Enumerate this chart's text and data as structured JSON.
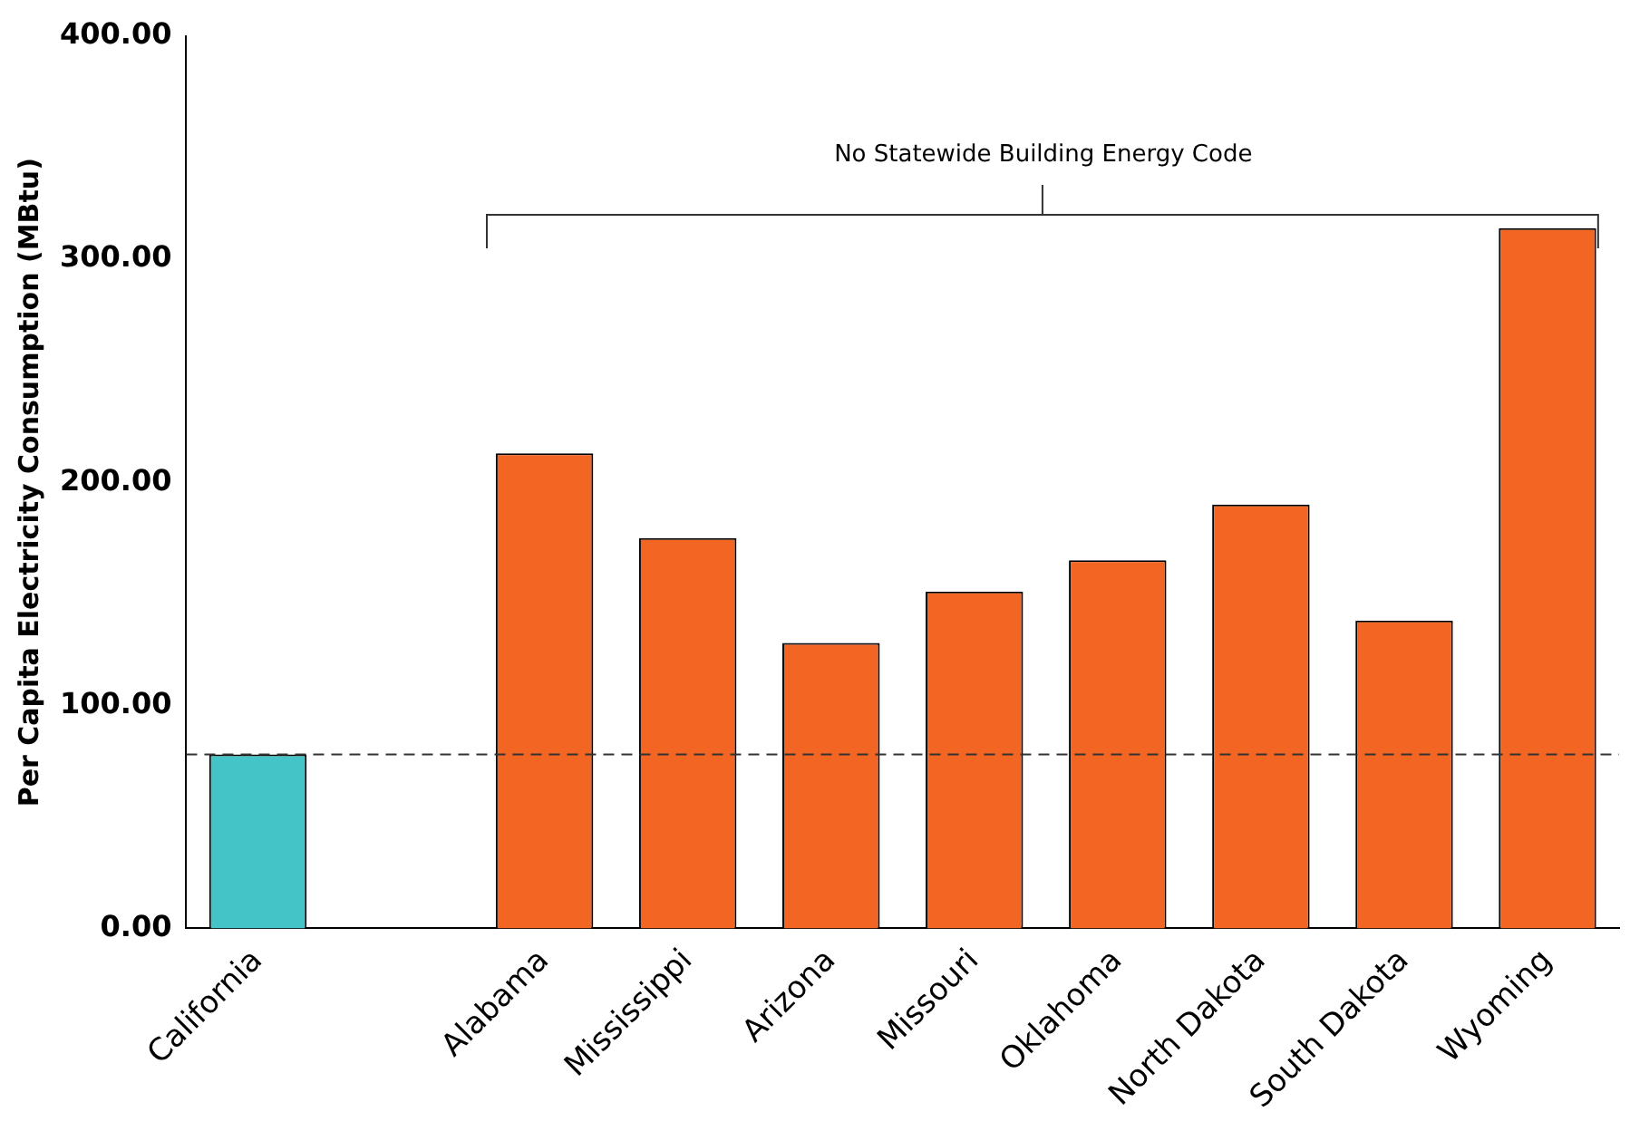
{
  "chart_data": {
    "type": "bar",
    "ylabel": "Per Capita Electricity Consumption (MBtu)",
    "categories": [
      "California",
      null,
      "Alabama",
      "Mississippi",
      "Arizona",
      "Missouri",
      "Oklahoma",
      "North Dakota",
      "South Dakota",
      "Wyoming"
    ],
    "values": [
      78,
      null,
      213,
      175,
      128,
      151,
      165,
      190,
      138,
      314
    ],
    "colors": [
      "#45c4c8",
      null,
      "#f26522",
      "#f26522",
      "#f26522",
      "#f26522",
      "#f26522",
      "#f26522",
      "#f26522",
      "#f26522"
    ],
    "ylim": [
      0,
      400
    ],
    "yticks": [
      {
        "value": 0,
        "label": "0.00"
      },
      {
        "value": 100,
        "label": "100.00"
      },
      {
        "value": 200,
        "label": "200.00"
      },
      {
        "value": 300,
        "label": "300.00"
      },
      {
        "value": 400,
        "label": "400.00"
      }
    ],
    "ref_lines": [
      {
        "axis": "y",
        "value": 78,
        "color": "#333333",
        "line_style": "dashed"
      }
    ],
    "annotations": [
      "No Statewide Building Energy Code"
    ],
    "grid": false,
    "legend": false
  }
}
